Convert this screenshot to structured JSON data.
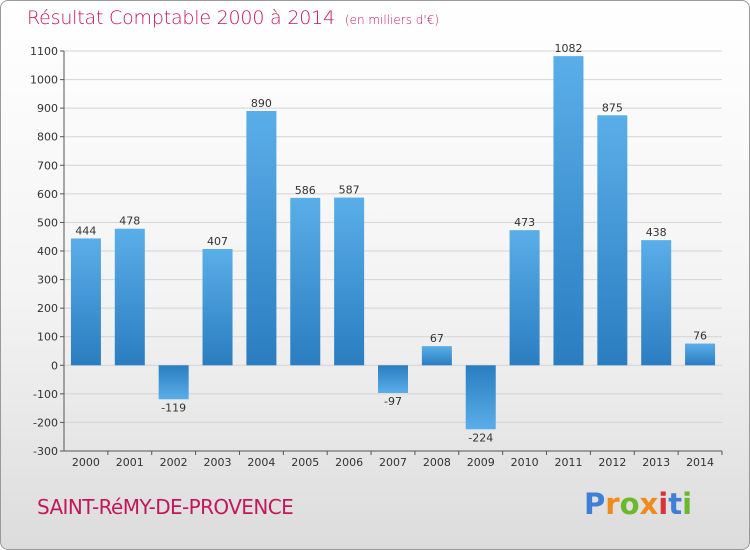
{
  "header": {
    "title": "Résultat Comptable 2000 à 2014",
    "subtitle": "(en milliers d'€)"
  },
  "footer": {
    "commune": "SAINT-RéMY-DE-PROVENCE",
    "brand": [
      "P",
      "r",
      "o",
      "x",
      "i",
      "t",
      "i"
    ],
    "brand_colors": [
      "#3f7fd6",
      "#f08a1c",
      "#6bb82a",
      "#f08a1c",
      "#d9303a",
      "#3f7fd6",
      "#6bb82a"
    ]
  },
  "colors": {
    "title": "#c2185b",
    "bar_light": "#5aaee8",
    "bar_dark": "#2a7dc0",
    "grid": "#d4d4d4"
  },
  "chart_data": {
    "type": "bar",
    "title": "Résultat Comptable 2000 à 2014",
    "subtitle": "(en milliers d'€)",
    "categories": [
      "2000",
      "2001",
      "2002",
      "2003",
      "2004",
      "2005",
      "2006",
      "2007",
      "2008",
      "2009",
      "2010",
      "2011",
      "2012",
      "2013",
      "2014"
    ],
    "values": [
      444,
      478,
      -119,
      407,
      890,
      586,
      587,
      -97,
      67,
      -224,
      473,
      1082,
      875,
      438,
      76
    ],
    "ylim": [
      -300,
      1100
    ],
    "yticks": [
      -300,
      -200,
      -100,
      0,
      100,
      200,
      300,
      400,
      500,
      600,
      700,
      800,
      900,
      1000,
      1100
    ],
    "grid": true,
    "legend": "none"
  }
}
